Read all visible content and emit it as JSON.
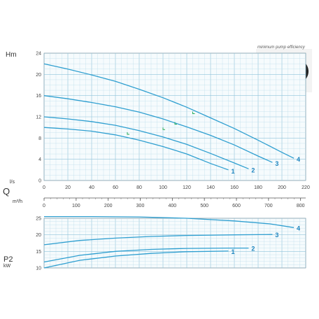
{
  "colors": {
    "curve": "#2f9fd0",
    "label": "#1f86c0",
    "grid": "#b9dbe9",
    "grid_major": "#8fc3da",
    "axis": "#555555",
    "marker": "#22aa55"
  },
  "labels": {
    "head_unit": "Hm",
    "flow_ls": "l/s",
    "flow_symbol": "Q",
    "flow_m3h": "m³/h",
    "power_symbol": "P2",
    "power_unit": "kW",
    "pump_note": "minimum pump efficiency"
  },
  "chart_data": [
    {
      "type": "line",
      "ylabel": "Hm",
      "xlabel": "Q",
      "x_unit": "m³/h",
      "xlim": [
        0,
        220
      ],
      "ylim": [
        0,
        24
      ],
      "x_ticks": [
        0,
        20,
        40,
        60,
        80,
        100,
        120,
        140,
        160,
        180,
        200,
        220
      ],
      "y_ticks": [
        0,
        4,
        8,
        12,
        16,
        20,
        24
      ],
      "secondary_x_ticks": [
        0,
        100,
        200,
        300,
        400,
        500,
        600,
        700,
        800
      ],
      "secondary_x_unit": "l/s",
      "grid": true,
      "series": [
        {
          "name": "1",
          "x": [
            0,
            20,
            40,
            60,
            80,
            100,
            120,
            140,
            155
          ],
          "y": [
            10,
            9.7,
            9.3,
            8.6,
            7.6,
            6.4,
            5.0,
            3.2,
            2.0
          ]
        },
        {
          "name": "2",
          "x": [
            0,
            20,
            40,
            60,
            80,
            100,
            120,
            140,
            160,
            172
          ],
          "y": [
            12,
            11.6,
            11.1,
            10.4,
            9.4,
            8.2,
            6.8,
            5.1,
            3.3,
            2.2
          ]
        },
        {
          "name": "3",
          "x": [
            0,
            20,
            40,
            60,
            80,
            100,
            120,
            140,
            160,
            180,
            192
          ],
          "y": [
            16,
            15.4,
            14.7,
            13.9,
            12.9,
            11.6,
            10.1,
            8.5,
            6.7,
            4.6,
            3.4
          ]
        },
        {
          "name": "4",
          "x": [
            0,
            20,
            40,
            60,
            80,
            100,
            120,
            140,
            160,
            180,
            200,
            210
          ],
          "y": [
            22,
            21.0,
            19.9,
            18.7,
            17.2,
            15.6,
            13.8,
            11.8,
            9.8,
            7.6,
            5.3,
            4.2
          ]
        }
      ]
    },
    {
      "type": "line",
      "ylabel": "P2",
      "y_unit": "kW",
      "xlim": [
        0,
        220
      ],
      "ylim": [
        10,
        25
      ],
      "y_ticks": [
        10,
        15,
        20,
        25
      ],
      "grid": true,
      "series": [
        {
          "name": "1",
          "x": [
            0,
            30,
            60,
            90,
            120,
            155
          ],
          "y": [
            10.0,
            12.3,
            13.6,
            14.4,
            14.9,
            15.1
          ]
        },
        {
          "name": "2",
          "x": [
            0,
            30,
            60,
            90,
            120,
            155,
            172
          ],
          "y": [
            11.8,
            13.8,
            15.0,
            15.6,
            15.9,
            16.0,
            16.0
          ]
        },
        {
          "name": "3",
          "x": [
            0,
            30,
            60,
            90,
            120,
            160,
            192
          ],
          "y": [
            17.0,
            18.3,
            19.0,
            19.5,
            19.8,
            20.0,
            20.1
          ]
        },
        {
          "name": "4",
          "x": [
            0,
            40,
            80,
            120,
            160,
            190,
            210
          ],
          "y": [
            25.5,
            25.5,
            25.4,
            25.0,
            24.2,
            23.3,
            22.2
          ]
        }
      ]
    }
  ]
}
